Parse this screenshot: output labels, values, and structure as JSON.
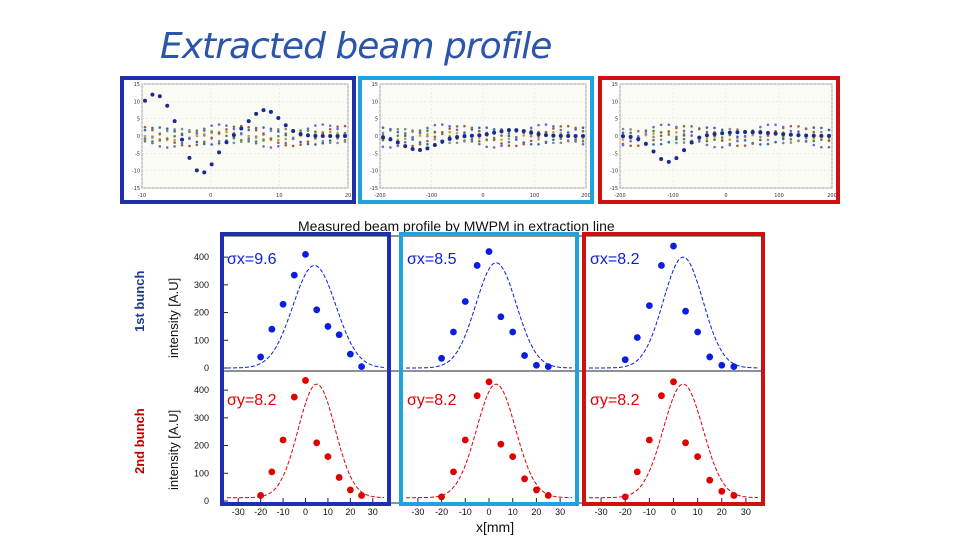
{
  "slide": {
    "title": "Extracted beam profile",
    "subtitle": "Measured beam profile by MWPM in extraction line",
    "xlabel": "x[mm]",
    "ylabel": "intensity [A.U]",
    "row_labels": [
      "1st bunch",
      "2nd bunch"
    ]
  },
  "colors": {
    "dark_blue": "#1f2fb0",
    "light_blue": "#1fa3dd",
    "red": "#d01010",
    "point_blue": "#0a1ee0",
    "point_red": "#e00000",
    "title": "#2a55a8"
  },
  "thumbnails": [
    {
      "id": "thumb-1",
      "border": "#1f2fb0",
      "y_ticks": [
        "15",
        "10",
        "5",
        "0",
        "-5",
        "-10",
        "-15"
      ],
      "x_ticks": [
        "-10",
        "0",
        "10",
        "20"
      ]
    },
    {
      "id": "thumb-2",
      "border": "#1fa3dd",
      "y_ticks": [
        "15",
        "10",
        "5",
        "0",
        "-5",
        "-10",
        "-15"
      ],
      "x_ticks": [
        "-200",
        "-100",
        "0",
        "100",
        "200"
      ]
    },
    {
      "id": "thumb-3",
      "border": "#d01010",
      "y_ticks": [
        "15",
        "10",
        "5",
        "0",
        "-5",
        "-10",
        "-15"
      ],
      "x_ticks": [
        "-200",
        "-100",
        "0",
        "100",
        "200"
      ]
    }
  ],
  "chart_data": [
    {
      "type": "scatter",
      "title": "Measured beam profile by MWPM in extraction line",
      "xlabel": "x[mm]",
      "ylabel": "intensity [A.U]",
      "xlim": [
        -35,
        35
      ],
      "ylim": [
        0,
        460
      ],
      "x_ticks": [
        "-30",
        "-20",
        "-10",
        "0",
        "10",
        "20",
        "30"
      ],
      "y_ticks": [
        "0",
        "100",
        "200",
        "300",
        "400"
      ],
      "panels": [
        {
          "row": "1st bunch",
          "label": "σx=9.6",
          "sigma": 9.6,
          "mean": 4,
          "amp": 370,
          "color": "#0a1ee0",
          "x": [
            -20,
            -15,
            -10,
            -5,
            0,
            5,
            10,
            15,
            20,
            25
          ],
          "y": [
            40,
            140,
            230,
            335,
            410,
            210,
            150,
            120,
            50,
            5
          ]
        },
        {
          "row": "1st bunch",
          "label": "σx=8.5",
          "sigma": 8.5,
          "mean": 3,
          "amp": 380,
          "color": "#0a1ee0",
          "x": [
            -20,
            -15,
            -10,
            -5,
            0,
            5,
            10,
            15,
            20,
            25
          ],
          "y": [
            35,
            130,
            240,
            370,
            420,
            185,
            130,
            45,
            10,
            5
          ]
        },
        {
          "row": "1st bunch",
          "label": "σx=8.2",
          "sigma": 8.2,
          "mean": 4,
          "amp": 400,
          "color": "#0a1ee0",
          "x": [
            -20,
            -15,
            -10,
            -5,
            0,
            5,
            10,
            15,
            20,
            25
          ],
          "y": [
            30,
            110,
            225,
            370,
            440,
            205,
            130,
            40,
            10,
            5
          ]
        },
        {
          "row": "2nd bunch",
          "label": "σy=8.2",
          "sigma": 8.2,
          "mean": 5,
          "amp": 410,
          "color": "#e00000",
          "x": [
            -20,
            -15,
            -10,
            -5,
            0,
            5,
            10,
            15,
            20,
            25
          ],
          "y": [
            20,
            105,
            220,
            375,
            435,
            210,
            160,
            85,
            40,
            20
          ]
        },
        {
          "row": "2nd bunch",
          "label": "σy=8.2",
          "sigma": 8.2,
          "mean": 3,
          "amp": 410,
          "color": "#e00000",
          "x": [
            -20,
            -15,
            -10,
            -5,
            0,
            5,
            10,
            15,
            20,
            25
          ],
          "y": [
            15,
            105,
            220,
            380,
            430,
            205,
            160,
            80,
            40,
            20
          ]
        },
        {
          "row": "2nd bunch",
          "label": "σy=8.2",
          "sigma": 8.2,
          "mean": 4,
          "amp": 410,
          "color": "#e00000",
          "x": [
            -20,
            -15,
            -10,
            -5,
            0,
            5,
            10,
            15,
            20,
            25
          ],
          "y": [
            15,
            105,
            220,
            380,
            430,
            210,
            160,
            75,
            35,
            20
          ]
        }
      ]
    }
  ]
}
